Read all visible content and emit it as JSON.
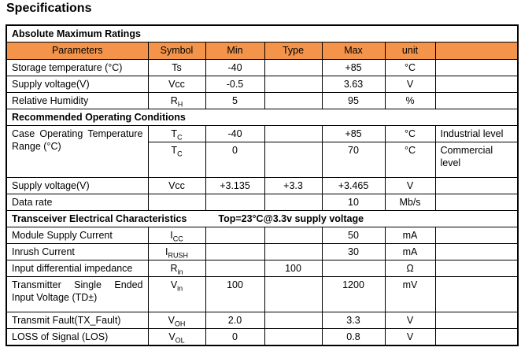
{
  "title": "Specifications",
  "colors": {
    "header_bg": "#F3944A",
    "border": "#000000",
    "text": "#000000"
  },
  "table": {
    "rows": [
      {
        "kind": "section",
        "label": "Absolute Maximum Ratings",
        "note": ""
      },
      {
        "kind": "header",
        "cells": [
          "Parameters",
          "Symbol",
          "Min",
          "Type",
          "Max",
          "unit",
          ""
        ]
      },
      {
        "kind": "data",
        "param": "Storage temperature (°C)",
        "sym": "Ts",
        "sub": "",
        "min": "-40",
        "typ": "",
        "max": "+85",
        "unit": "°C",
        "note": ""
      },
      {
        "kind": "data",
        "param": "Supply voltage(V)",
        "sym": "Vcc",
        "sub": "",
        "min": "-0.5",
        "typ": "",
        "max": "3.63",
        "unit": "V",
        "note": ""
      },
      {
        "kind": "data",
        "param": "Relative Humidity",
        "sym": "R",
        "sub": "H",
        "min": "5",
        "typ": "",
        "max": "95",
        "unit": "%",
        "note": ""
      },
      {
        "kind": "section",
        "label": "Recommended Operating Conditions",
        "note": ""
      },
      {
        "kind": "data",
        "param": "Case Operating Temperature Range (°C)",
        "param_rowspan": 2,
        "sym": "T",
        "sub": "C",
        "min": "-40",
        "typ": "",
        "max": "+85",
        "unit": "°C",
        "note": "Industrial level"
      },
      {
        "kind": "data",
        "param": null,
        "sym": "T",
        "sub": "C",
        "min": "0",
        "typ": "",
        "max": "70",
        "unit": "°C",
        "note": "Commercial level",
        "tall": true
      },
      {
        "kind": "data",
        "param": "Supply voltage(V)",
        "sym": "Vcc",
        "sub": "",
        "min": "+3.135",
        "typ": "+3.3",
        "max": "+3.465",
        "unit": "V",
        "note": ""
      },
      {
        "kind": "data",
        "param": "Data rate",
        "sym": "",
        "sub": "",
        "min": "",
        "typ": "",
        "max": "10",
        "unit": "Mb/s",
        "note": ""
      },
      {
        "kind": "section",
        "label": "Transceiver Electrical Characteristics",
        "note": "Top=23°C@3.3v supply voltage"
      },
      {
        "kind": "data",
        "param": "Module Supply Current",
        "sym": "I",
        "sub": "CC",
        "min": "",
        "typ": "",
        "max": "50",
        "unit": "mA",
        "note": ""
      },
      {
        "kind": "data",
        "param": "Inrush Current",
        "sym": "I",
        "sub": "RUSH",
        "min": "",
        "typ": "",
        "max": "30",
        "unit": "mA",
        "note": ""
      },
      {
        "kind": "data",
        "param": "Input differential impedance",
        "sym": "R",
        "sub": "in",
        "min": "",
        "typ": "100",
        "max": "",
        "unit": "Ω",
        "note": ""
      },
      {
        "kind": "data",
        "param": "Transmitter Single Ended Input Voltage (TD±)",
        "sym": "V",
        "sub": "in",
        "min": "100",
        "typ": "",
        "max": "1200",
        "unit": "mV",
        "note": "",
        "tall": true
      },
      {
        "kind": "data",
        "param": "Transmit Fault(TX_Fault)",
        "sym": "V",
        "sub": "OH",
        "min": "2.0",
        "typ": "",
        "max": "3.3",
        "unit": "V",
        "note": ""
      },
      {
        "kind": "data",
        "param": "LOSS of Signal (LOS)",
        "sym": "V",
        "sub": "OL",
        "min": "0",
        "typ": "",
        "max": "0.8",
        "unit": "V",
        "note": ""
      }
    ]
  }
}
